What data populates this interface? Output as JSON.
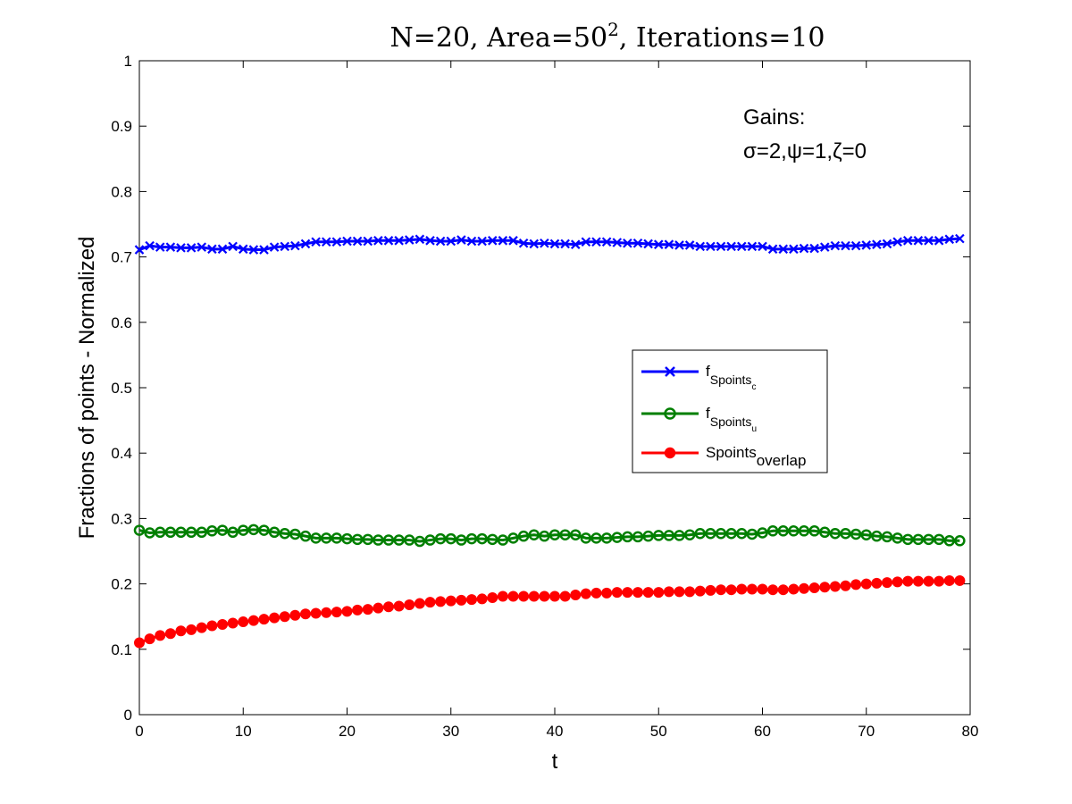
{
  "chart_data": {
    "type": "line",
    "title": {
      "main": "N=20, Area=50",
      "sup": "2",
      "rest": ", Iterations=10"
    },
    "xlabel": "t",
    "ylabel": "Fractions of points - Normalized",
    "xlim": [
      0,
      80
    ],
    "ylim": [
      0,
      1
    ],
    "x_ticks": [
      "0",
      "10",
      "20",
      "30",
      "40",
      "50",
      "60",
      "70",
      "80"
    ],
    "y_ticks": [
      "0",
      "0.1",
      "0.2",
      "0.3",
      "0.4",
      "0.5",
      "0.6",
      "0.7",
      "0.8",
      "0.9",
      "1"
    ],
    "grid": false,
    "legend_position": "center-right",
    "annotation": {
      "line1": "Gains:",
      "line2": "σ=2,ψ=1,ζ=0"
    },
    "x": [
      0,
      1,
      2,
      3,
      4,
      5,
      6,
      7,
      8,
      9,
      10,
      11,
      12,
      13,
      14,
      15,
      16,
      17,
      18,
      19,
      20,
      21,
      22,
      23,
      24,
      25,
      26,
      27,
      28,
      29,
      30,
      31,
      32,
      33,
      34,
      35,
      36,
      37,
      38,
      39,
      40,
      41,
      42,
      43,
      44,
      45,
      46,
      47,
      48,
      49,
      50,
      51,
      52,
      53,
      54,
      55,
      56,
      57,
      58,
      59,
      60,
      61,
      62,
      63,
      64,
      65,
      66,
      67,
      68,
      69,
      70,
      71,
      72,
      73,
      74,
      75,
      76,
      77,
      78,
      79
    ],
    "series": [
      {
        "name": "f",
        "sub": "Spoints",
        "subsub": "c",
        "color": "#0000ff",
        "marker": "x",
        "values": [
          0.711,
          0.717,
          0.715,
          0.715,
          0.714,
          0.714,
          0.715,
          0.712,
          0.712,
          0.716,
          0.712,
          0.711,
          0.711,
          0.715,
          0.716,
          0.717,
          0.72,
          0.723,
          0.723,
          0.723,
          0.724,
          0.724,
          0.724,
          0.725,
          0.725,
          0.725,
          0.726,
          0.727,
          0.725,
          0.724,
          0.724,
          0.726,
          0.724,
          0.724,
          0.725,
          0.725,
          0.725,
          0.721,
          0.72,
          0.721,
          0.72,
          0.72,
          0.719,
          0.723,
          0.723,
          0.723,
          0.722,
          0.721,
          0.721,
          0.72,
          0.719,
          0.719,
          0.718,
          0.718,
          0.716,
          0.716,
          0.716,
          0.716,
          0.716,
          0.716,
          0.716,
          0.712,
          0.712,
          0.712,
          0.713,
          0.713,
          0.715,
          0.717,
          0.717,
          0.717,
          0.718,
          0.719,
          0.72,
          0.723,
          0.725,
          0.725,
          0.725,
          0.725,
          0.727,
          0.728
        ]
      },
      {
        "name": "f",
        "sub": "Spoints",
        "subsub": "u",
        "color": "#007f00",
        "marker": "o",
        "values": [
          0.282,
          0.278,
          0.279,
          0.279,
          0.279,
          0.279,
          0.279,
          0.281,
          0.282,
          0.279,
          0.282,
          0.283,
          0.282,
          0.279,
          0.277,
          0.276,
          0.273,
          0.27,
          0.27,
          0.27,
          0.269,
          0.268,
          0.268,
          0.267,
          0.267,
          0.267,
          0.267,
          0.265,
          0.267,
          0.269,
          0.269,
          0.267,
          0.269,
          0.269,
          0.268,
          0.267,
          0.27,
          0.273,
          0.275,
          0.273,
          0.275,
          0.275,
          0.275,
          0.27,
          0.27,
          0.27,
          0.271,
          0.272,
          0.272,
          0.273,
          0.274,
          0.274,
          0.274,
          0.275,
          0.277,
          0.277,
          0.277,
          0.277,
          0.277,
          0.276,
          0.278,
          0.281,
          0.281,
          0.281,
          0.281,
          0.281,
          0.279,
          0.277,
          0.277,
          0.276,
          0.275,
          0.273,
          0.272,
          0.27,
          0.268,
          0.268,
          0.268,
          0.268,
          0.266,
          0.266
        ]
      },
      {
        "name": "Spoints",
        "sub": "overlap",
        "subsub": "",
        "color": "#ff0000",
        "marker": "filled-circle",
        "values": [
          0.11,
          0.116,
          0.121,
          0.124,
          0.128,
          0.13,
          0.133,
          0.136,
          0.138,
          0.14,
          0.142,
          0.144,
          0.146,
          0.148,
          0.15,
          0.152,
          0.154,
          0.155,
          0.156,
          0.157,
          0.158,
          0.16,
          0.161,
          0.163,
          0.165,
          0.166,
          0.168,
          0.17,
          0.172,
          0.173,
          0.174,
          0.175,
          0.176,
          0.177,
          0.179,
          0.181,
          0.181,
          0.181,
          0.181,
          0.181,
          0.181,
          0.181,
          0.183,
          0.185,
          0.186,
          0.186,
          0.187,
          0.187,
          0.187,
          0.187,
          0.187,
          0.188,
          0.188,
          0.188,
          0.189,
          0.19,
          0.191,
          0.191,
          0.192,
          0.192,
          0.192,
          0.191,
          0.191,
          0.192,
          0.193,
          0.194,
          0.195,
          0.196,
          0.197,
          0.199,
          0.2,
          0.201,
          0.202,
          0.203,
          0.204,
          0.204,
          0.204,
          0.204,
          0.205,
          0.205
        ]
      }
    ]
  }
}
